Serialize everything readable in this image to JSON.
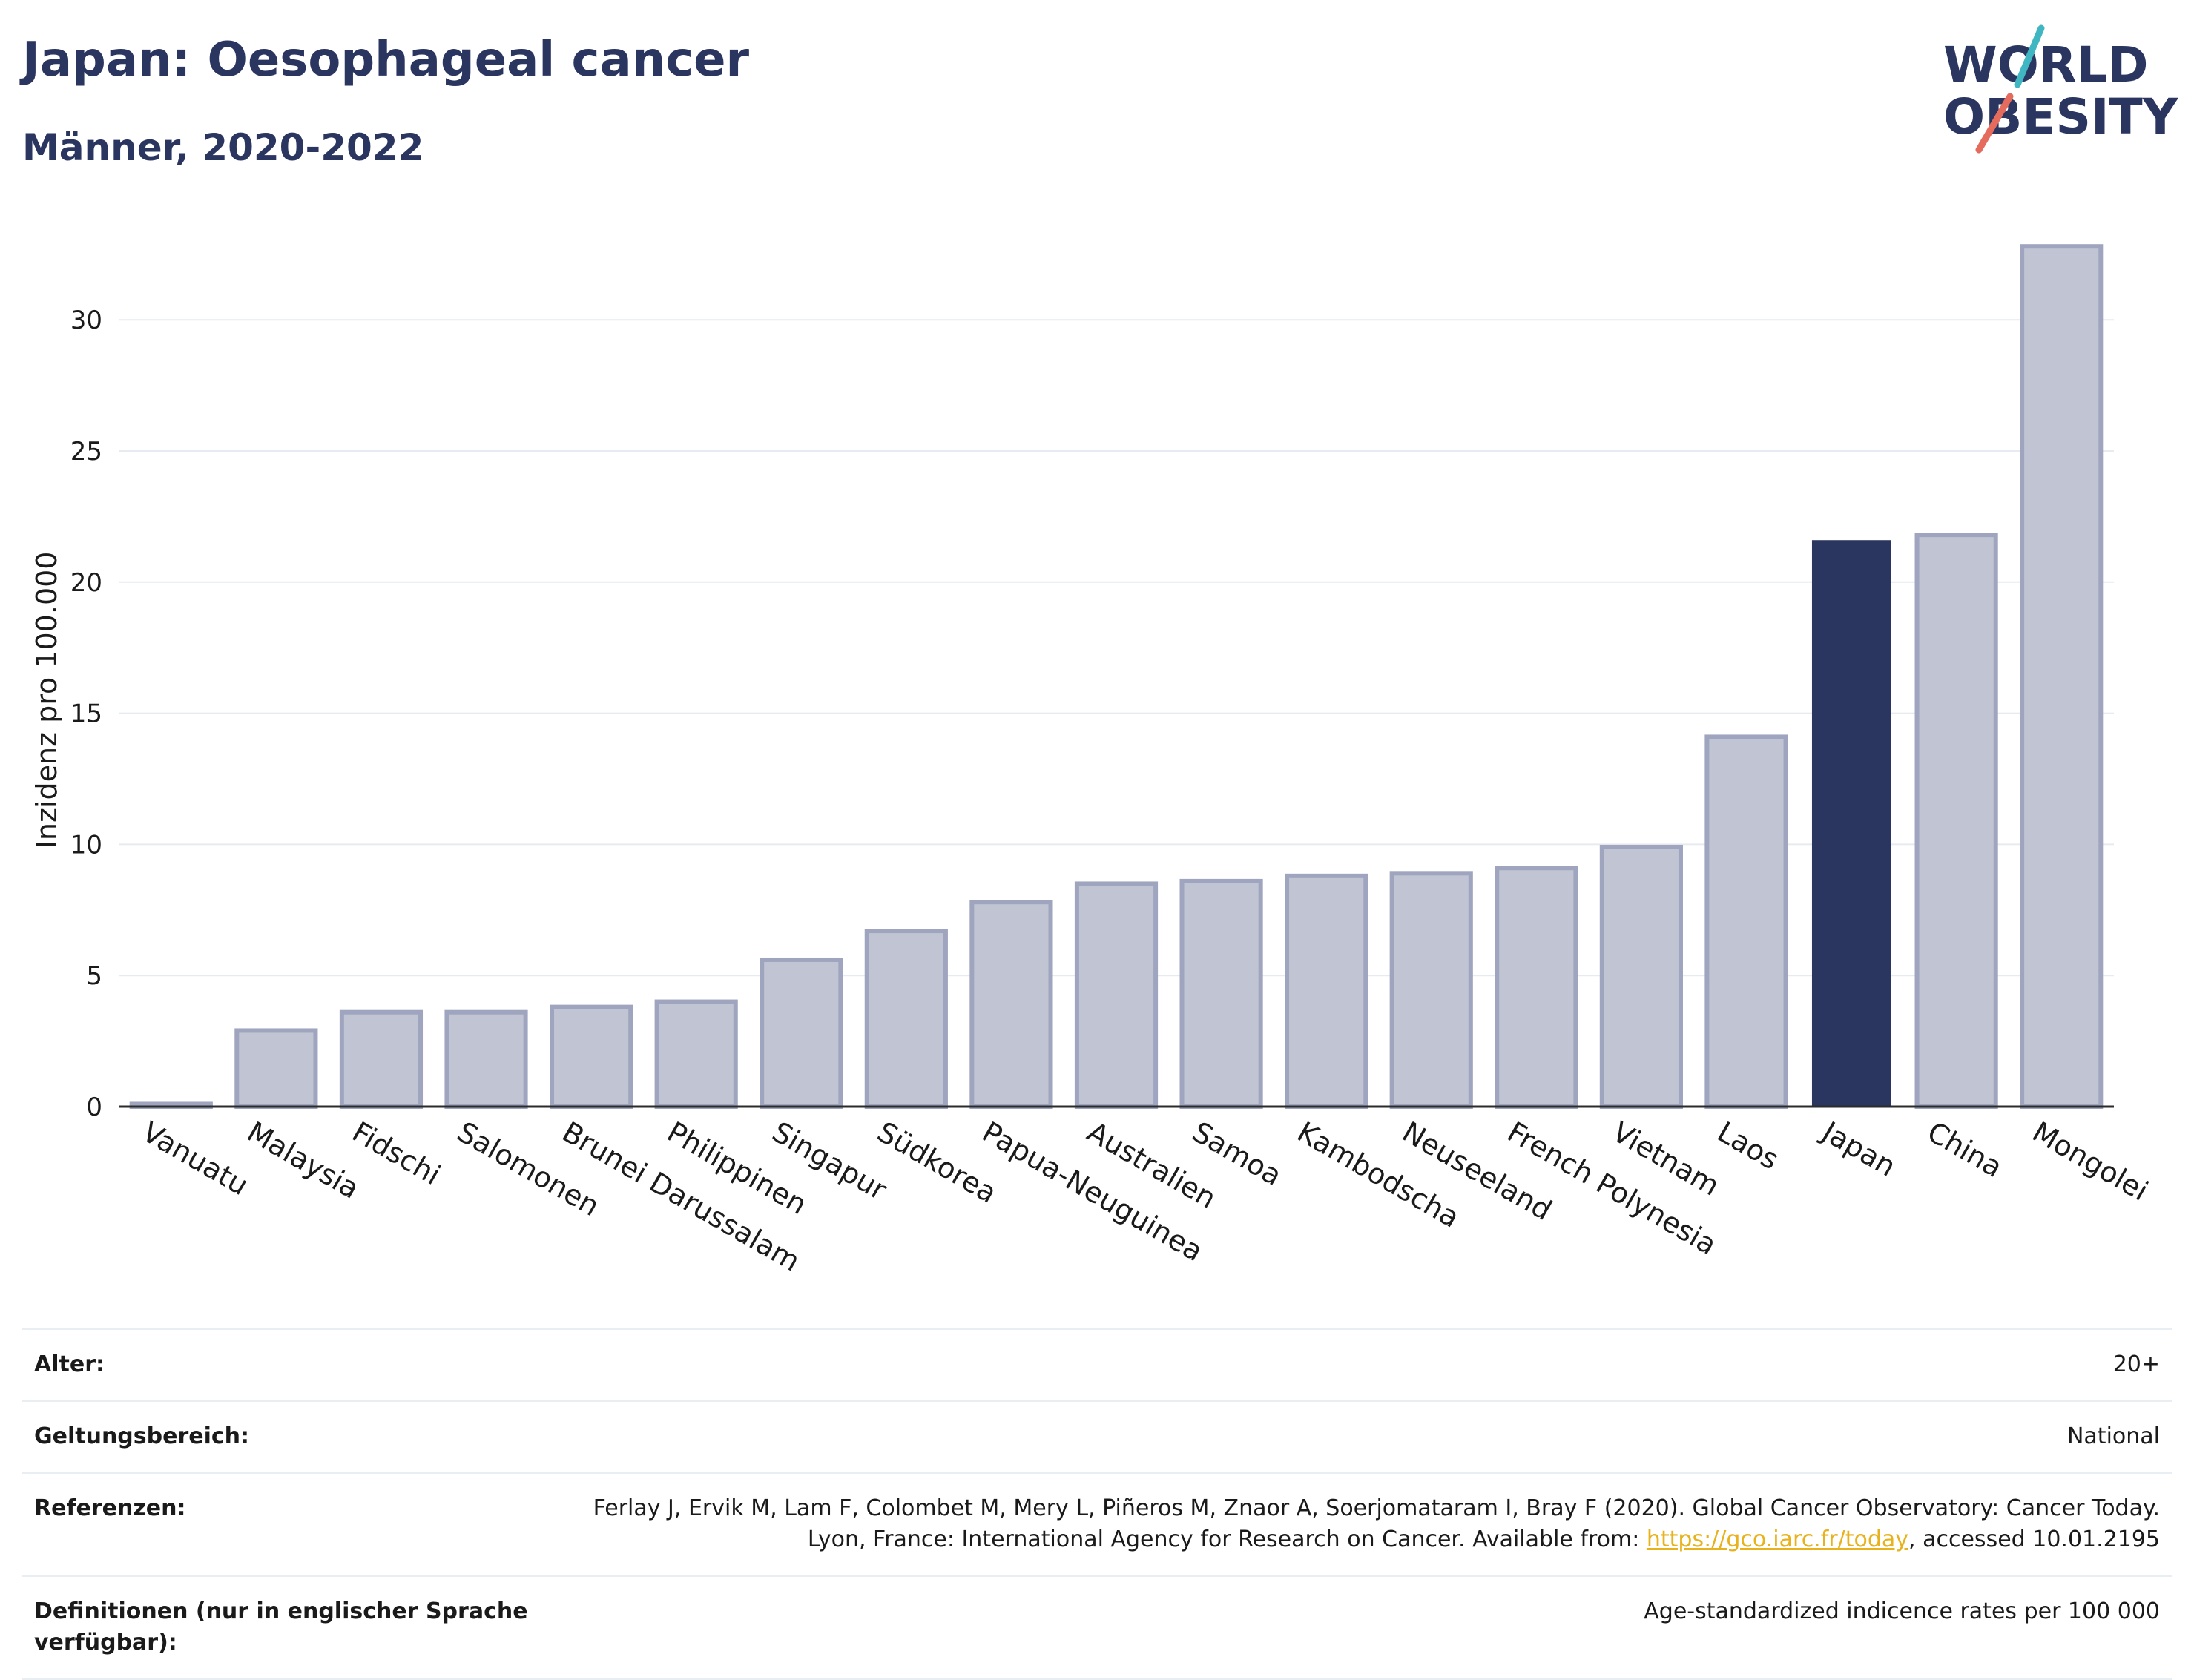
{
  "header": {
    "title": "Japan: Oesophageal cancer",
    "subtitle": "Männer, 2020-2022"
  },
  "logo": {
    "line1": "WORLD",
    "line2": "OBESITY",
    "colors": {
      "text": "#2a3560",
      "slash_teal": "#3fb6c1",
      "slash_red": "#e56b5d"
    }
  },
  "chart_data": {
    "type": "bar",
    "categories": [
      "Vanuatu",
      "Malaysia",
      "Fidschi",
      "Salomonen",
      "Brunei Darussalam",
      "Philippinen",
      "Singapur",
      "Südkorea",
      "Papua-Neuguinea",
      "Australien",
      "Samoa",
      "Kambodscha",
      "Neuseeland",
      "French Polynesia",
      "Vietnam",
      "Laos",
      "Japan",
      "China",
      "Mongolei"
    ],
    "values": [
      0.1,
      2.9,
      3.6,
      3.6,
      3.8,
      4.0,
      5.6,
      6.7,
      7.8,
      8.5,
      8.6,
      8.8,
      8.9,
      9.1,
      9.9,
      14.1,
      21.6,
      21.8,
      32.8
    ],
    "highlight": "Japan",
    "ylabel": "Inzidenz pro 100.000",
    "xlabel": "",
    "ylim": [
      0,
      35
    ],
    "yticks": [
      0,
      5,
      10,
      15,
      20,
      25,
      30
    ],
    "grid": true,
    "colors": {
      "bar": "#c1c4d2",
      "bar_border": "#9fa5bf",
      "highlight": "#2a3560"
    }
  },
  "info": {
    "age_label": "Alter:",
    "age_value": "20+",
    "scope_label": "Geltungsbereich:",
    "scope_value": "National",
    "ref_label": "Referenzen:",
    "ref_text_1": "Ferlay J, Ervik M, Lam F, Colombet M, Mery L, Piñeros M, Znaor A, Soerjomataram I, Bray F (2020). Global Cancer Observatory: Cancer Today. Lyon, France: International Agency for Research on Cancer. Available from: ",
    "ref_link": "https://gco.iarc.fr/today",
    "ref_text_2": ", accessed 10.01.2195",
    "def_label": "Definitionen (nur in englischer Sprache verfügbar):",
    "def_value": "Age-standardized indicence rates per 100 000"
  }
}
